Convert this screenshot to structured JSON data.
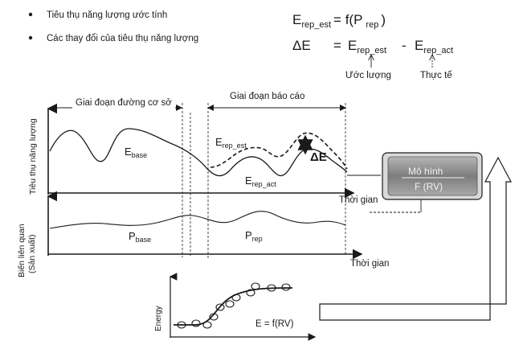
{
  "bullets": [
    {
      "text": "Tiêu thụ năng lượng ước tính"
    },
    {
      "text": "Các thay đổi của tiêu thụ năng lượng"
    }
  ],
  "formulas": {
    "line1": {
      "lhs_base": "E",
      "lhs_sub": "rep_est",
      "rhs": "= f(P",
      "rhs_sub": "rep",
      "close": ")"
    },
    "line2": {
      "lhs": "ΔE",
      "eq": "=",
      "t1_base": "E",
      "t1_sub": "rep_est",
      "minus": "-",
      "t2_base": "E",
      "t2_sub": "rep_act"
    },
    "label_estimate": "Ước lượng",
    "label_actual": "Thực tế"
  },
  "top_chart": {
    "ylabel": "Tiêu thụ năng lượng",
    "xlabel": "Thời gian",
    "baseline_period": "Giai đoạn đường cơ sở",
    "report_period": "Giai đoạn báo cáo",
    "e_base": {
      "base": "E",
      "sub": "base"
    },
    "e_rep_est": {
      "base": "E",
      "sub": "rep_est"
    },
    "e_rep_act": {
      "base": "E",
      "sub": "rep_act"
    },
    "delta": "ΔE"
  },
  "bottom_chart": {
    "ylabel_line1": "Biến liên quan",
    "ylabel_line2": "(Sản xuất)",
    "xlabel": "Thời gian",
    "p_base": {
      "base": "P",
      "sub": "base"
    },
    "p_rep": {
      "base": "P",
      "sub": "rep"
    }
  },
  "model_box": {
    "line1": "Mô hình",
    "line2": "F (RV)",
    "fill": "#8c8c8c"
  },
  "regression": {
    "ylabel": "Energy",
    "equation": "E = f(RV)"
  }
}
